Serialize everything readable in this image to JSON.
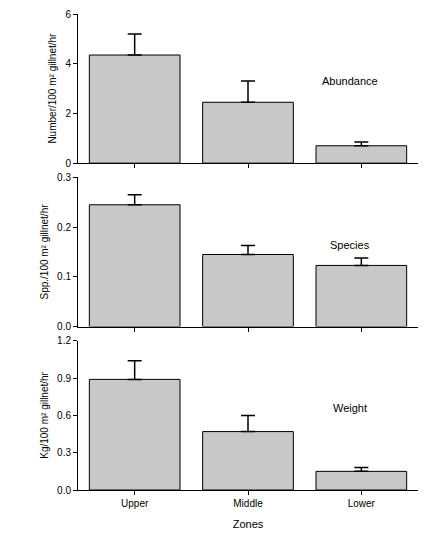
{
  "chart_data": [
    {
      "type": "bar",
      "annotation": "Abundance",
      "y_label": "Number/100 m² gillnet/hr",
      "categories": [
        "Upper",
        "Middle",
        "Lower"
      ],
      "values": [
        4.35,
        2.45,
        0.7
      ],
      "errors": [
        0.85,
        0.85,
        0.15
      ],
      "color": "#c8c8c8",
      "ylim": [
        0,
        6
      ],
      "yticks": [
        0,
        2,
        4,
        6
      ],
      "grid": false,
      "tick_labels": "y"
    },
    {
      "type": "bar",
      "annotation": "Species",
      "y_label": "Spp./100 m² gillnet/hr",
      "categories": [
        "Upper",
        "Middle",
        "Lower"
      ],
      "values": [
        0.245,
        0.145,
        0.123
      ],
      "errors": [
        0.02,
        0.018,
        0.015
      ],
      "color": "#c8c8c8",
      "ylim": [
        0,
        0.3
      ],
      "yticks": [
        {
          "value": 0,
          "label": "0.0"
        },
        0.1,
        0.2,
        0.3
      ],
      "grid": false,
      "tick_labels": "y"
    },
    {
      "type": "bar",
      "annotation": "Weight",
      "x_label": "Zones",
      "y_label": "Kg/100 m² gillnet/hr",
      "categories": [
        "Upper",
        "Middle",
        "Lower"
      ],
      "values": [
        0.89,
        0.47,
        0.15
      ],
      "errors": [
        0.15,
        0.13,
        0.03
      ],
      "color": "#c8c8c8",
      "ylim": [
        0,
        1.2
      ],
      "yticks": [
        {
          "value": 0,
          "label": "0.0"
        },
        0.3,
        0.6,
        0.9,
        1.2
      ],
      "grid": false
    }
  ]
}
